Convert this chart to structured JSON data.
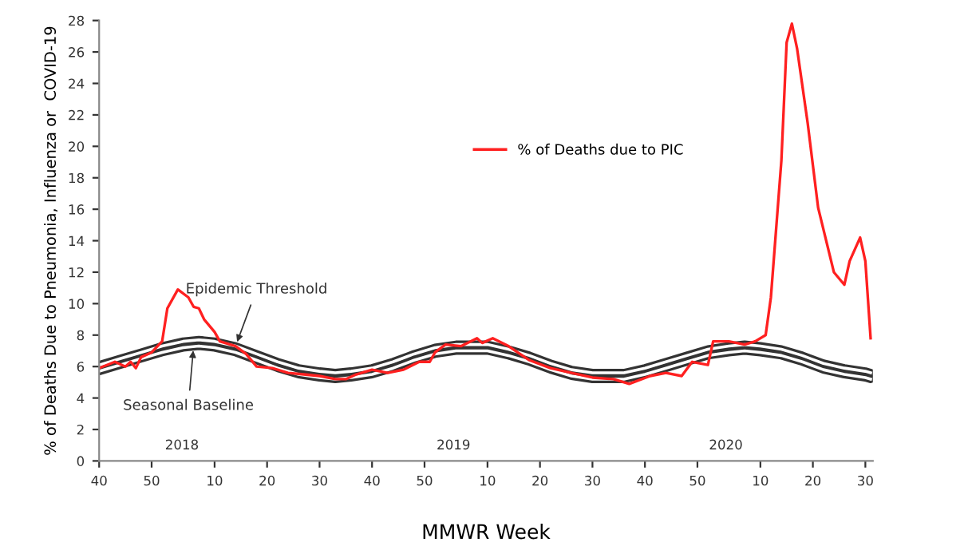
{
  "chart_data": {
    "type": "line",
    "xlabel": "MMWR Week",
    "ylabel": "% of Deaths Due to Pneumonia, Influenza or  COVID-19",
    "xlim": [
      "2017-10-01",
      "2020-07-29"
    ],
    "ylim": [
      0,
      28
    ],
    "xticks": [
      {
        "value": "2017-10-01",
        "label": "40"
      },
      {
        "value": "2017-12-10",
        "label": "50"
      },
      {
        "value": "2018-03-04",
        "label": "10"
      },
      {
        "value": "2018-05-13",
        "label": "20"
      },
      {
        "value": "2018-07-22",
        "label": "30"
      },
      {
        "value": "2018-09-30",
        "label": "40"
      },
      {
        "value": "2018-12-09",
        "label": "50"
      },
      {
        "value": "2019-03-03",
        "label": "10"
      },
      {
        "value": "2019-05-12",
        "label": "20"
      },
      {
        "value": "2019-07-21",
        "label": "30"
      },
      {
        "value": "2019-09-29",
        "label": "40"
      },
      {
        "value": "2019-12-08",
        "label": "50"
      },
      {
        "value": "2020-03-01",
        "label": "10"
      },
      {
        "value": "2020-05-10",
        "label": "20"
      },
      {
        "value": "2020-07-19",
        "label": "30"
      }
    ],
    "yticks": [
      0,
      2,
      4,
      6,
      8,
      10,
      12,
      14,
      16,
      18,
      20,
      22,
      24,
      26,
      28
    ],
    "grid": false,
    "legend": "top",
    "marker": "none",
    "line_style": "solid",
    "series": [
      {
        "color": "#333333",
        "x": [
          "2017-10-01",
          "2017-10-29",
          "2017-11-26",
          "2017-12-24",
          "2018-01-21",
          "2018-02-11",
          "2018-03-04",
          "2018-04-01",
          "2018-04-29",
          "2018-05-27",
          "2018-06-24",
          "2018-07-22",
          "2018-08-12",
          "2018-09-02",
          "2018-09-30",
          "2018-10-28",
          "2018-11-25",
          "2018-12-23",
          "2019-01-20",
          "2019-02-10",
          "2019-03-03",
          "2019-03-31",
          "2019-04-28",
          "2019-05-26",
          "2019-06-23",
          "2019-07-21",
          "2019-08-11",
          "2019-09-01",
          "2019-09-29",
          "2019-10-27",
          "2019-11-24",
          "2019-12-22",
          "2020-01-19",
          "2020-02-09",
          "2020-03-01",
          "2020-03-29",
          "2020-04-26",
          "2020-05-24",
          "2020-06-21",
          "2020-07-19",
          "2020-07-26"
        ],
        "values": [
          6.1,
          6.5,
          6.9,
          7.3,
          7.6,
          7.7,
          7.6,
          7.3,
          6.8,
          6.3,
          5.9,
          5.7,
          5.6,
          5.7,
          5.9,
          6.3,
          6.8,
          7.2,
          7.4,
          7.4,
          7.4,
          7.1,
          6.7,
          6.2,
          5.8,
          5.6,
          5.6,
          5.6,
          5.9,
          6.3,
          6.7,
          7.1,
          7.3,
          7.4,
          7.3,
          7.1,
          6.7,
          6.2,
          5.9,
          5.7,
          5.6
        ]
      },
      {
        "color": "#333333",
        "x": [
          "2017-10-01",
          "2017-10-29",
          "2017-11-26",
          "2017-12-24",
          "2018-01-21",
          "2018-02-11",
          "2018-03-04",
          "2018-04-01",
          "2018-04-29",
          "2018-05-27",
          "2018-06-24",
          "2018-07-22",
          "2018-08-12",
          "2018-09-02",
          "2018-09-30",
          "2018-10-28",
          "2018-11-25",
          "2018-12-23",
          "2019-01-20",
          "2019-02-10",
          "2019-03-03",
          "2019-03-31",
          "2019-04-28",
          "2019-05-26",
          "2019-06-23",
          "2019-07-21",
          "2019-08-11",
          "2019-09-01",
          "2019-09-29",
          "2019-10-27",
          "2019-11-24",
          "2019-12-22",
          "2020-01-19",
          "2020-02-09",
          "2020-03-01",
          "2020-03-29",
          "2020-04-26",
          "2020-05-24",
          "2020-06-21",
          "2020-07-19",
          "2020-07-26"
        ],
        "values": [
          5.7,
          6.1,
          6.5,
          6.9,
          7.2,
          7.3,
          7.2,
          6.9,
          6.4,
          5.9,
          5.5,
          5.3,
          5.2,
          5.3,
          5.5,
          5.9,
          6.4,
          6.8,
          7.0,
          7.0,
          7.0,
          6.7,
          6.3,
          5.8,
          5.4,
          5.2,
          5.2,
          5.2,
          5.5,
          5.9,
          6.3,
          6.7,
          6.9,
          7.0,
          6.9,
          6.7,
          6.3,
          5.8,
          5.5,
          5.3,
          5.2
        ]
      },
      {
        "name": "% of Deaths due to PIC",
        "color": "#ff2020",
        "x": [
          "2017-10-01",
          "2017-10-22",
          "2017-11-05",
          "2017-11-12",
          "2017-11-19",
          "2017-11-26",
          "2017-12-10",
          "2017-12-24",
          "2017-12-31",
          "2018-01-14",
          "2018-01-28",
          "2018-02-04",
          "2018-02-11",
          "2018-02-18",
          "2018-03-04",
          "2018-03-11",
          "2018-04-01",
          "2018-04-15",
          "2018-04-29",
          "2018-05-20",
          "2018-06-10",
          "2018-07-01",
          "2018-07-22",
          "2018-08-12",
          "2018-08-26",
          "2018-09-09",
          "2018-09-30",
          "2018-10-21",
          "2018-11-11",
          "2018-12-02",
          "2018-12-16",
          "2018-12-23",
          "2019-01-06",
          "2019-01-27",
          "2019-02-17",
          "2019-02-24",
          "2019-03-10",
          "2019-03-31",
          "2019-04-28",
          "2019-05-26",
          "2019-06-23",
          "2019-07-21",
          "2019-08-18",
          "2019-09-08",
          "2019-10-06",
          "2019-10-27",
          "2019-11-17",
          "2019-12-01",
          "2019-12-22",
          "2019-12-29",
          "2020-01-19",
          "2020-02-09",
          "2020-02-23",
          "2020-03-08",
          "2020-03-15",
          "2020-03-29",
          "2020-04-05",
          "2020-04-12",
          "2020-04-19",
          "2020-05-03",
          "2020-05-17",
          "2020-06-07",
          "2020-06-21",
          "2020-06-28",
          "2020-07-12",
          "2020-07-19",
          "2020-07-26"
        ],
        "values": [
          5.9,
          6.3,
          6.0,
          6.3,
          5.9,
          6.6,
          6.9,
          7.6,
          9.7,
          10.9,
          10.4,
          9.8,
          9.7,
          9.0,
          8.2,
          7.6,
          7.3,
          6.8,
          6.0,
          5.9,
          5.6,
          5.5,
          5.4,
          5.2,
          5.2,
          5.5,
          5.8,
          5.6,
          5.8,
          6.3,
          6.3,
          6.9,
          7.4,
          7.3,
          7.8,
          7.5,
          7.8,
          7.3,
          6.4,
          5.9,
          5.6,
          5.3,
          5.2,
          4.9,
          5.4,
          5.6,
          5.4,
          6.3,
          6.1,
          7.6,
          7.6,
          7.4,
          7.6,
          8.0,
          10.4,
          19.1,
          26.6,
          27.8,
          26.2,
          21.5,
          16.1,
          12.0,
          11.2,
          12.7,
          14.2,
          12.7,
          7.8
        ]
      }
    ],
    "annotations": [
      {
        "text": "Epidemic Threshold",
        "x": "2018-04-01",
        "y": 7.3
      },
      {
        "text": "Seasonal Baseline",
        "x": "2018-02-04",
        "y": 7.3
      },
      "2018",
      "2019",
      "2020"
    ]
  }
}
